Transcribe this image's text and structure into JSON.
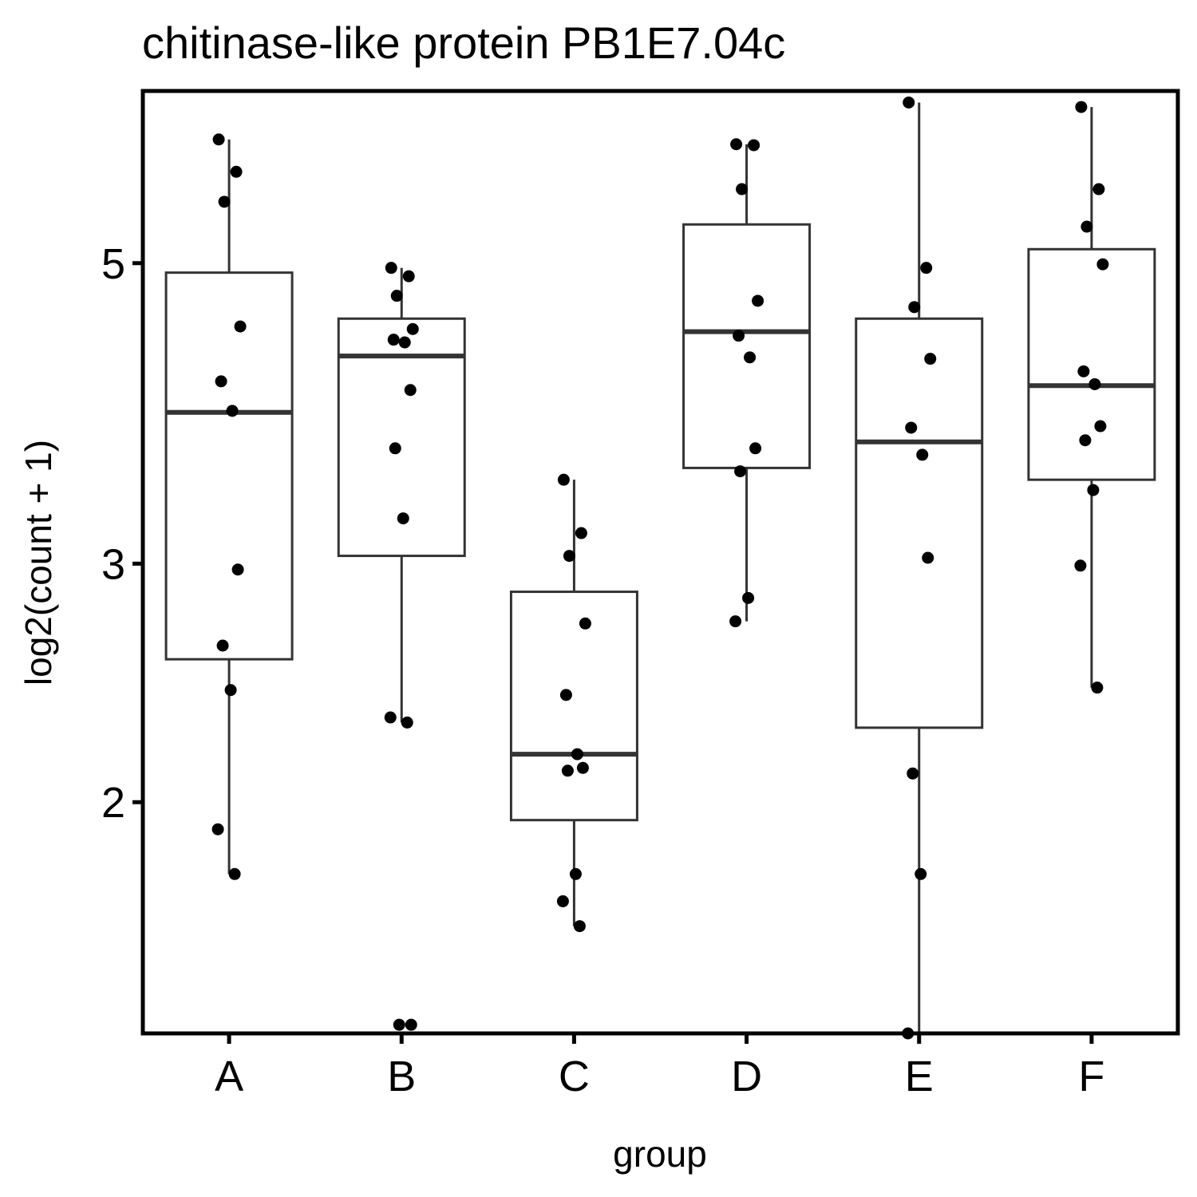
{
  "chart_data": {
    "type": "box",
    "title": "chitinase-like protein PB1E7.04c",
    "xlabel": "group",
    "ylabel": "log2(count + 1)",
    "y_scale": "log2",
    "ylim": [
      1.35,
      6.7
    ],
    "yticks": [
      2,
      3,
      5
    ],
    "ytick_labels": [
      "2",
      "3",
      "5"
    ],
    "grid": false,
    "legend": "none",
    "categories": [
      "A",
      "B",
      "C",
      "D",
      "E",
      "F"
    ],
    "boxes": [
      {
        "group": "A",
        "whisker_low": 1.77,
        "q1": 2.55,
        "median": 3.88,
        "q3": 4.92,
        "whisker_high": 6.17
      },
      {
        "group": "B",
        "whisker_low": 2.29,
        "q1": 3.04,
        "median": 4.27,
        "q3": 4.55,
        "whisker_high": 4.96
      },
      {
        "group": "C",
        "whisker_low": 1.62,
        "q1": 1.94,
        "median": 2.17,
        "q3": 2.86,
        "whisker_high": 3.46
      },
      {
        "group": "D",
        "whisker_low": 2.72,
        "q1": 3.53,
        "median": 4.45,
        "q3": 5.34,
        "whisker_high": 6.12
      },
      {
        "group": "E",
        "whisker_low": 1.35,
        "q1": 2.27,
        "median": 3.69,
        "q3": 4.55,
        "whisker_high": 6.57
      },
      {
        "group": "F",
        "whisker_low": 2.43,
        "q1": 3.46,
        "median": 4.06,
        "q3": 5.12,
        "whisker_high": 6.52
      }
    ],
    "points": [
      {
        "group": "A",
        "values": [
          6.17,
          5.84,
          5.55,
          4.49,
          4.09,
          3.89,
          2.97,
          2.61,
          2.42,
          1.91,
          1.77
        ]
      },
      {
        "group": "B",
        "values": [
          4.96,
          4.89,
          4.73,
          4.47,
          4.39,
          4.37,
          4.03,
          3.65,
          3.24,
          2.31,
          2.29,
          1.37,
          1.37
        ]
      },
      {
        "group": "C",
        "values": [
          3.46,
          3.16,
          3.04,
          2.71,
          2.4,
          2.17,
          2.12,
          2.11,
          1.77,
          1.69,
          1.62
        ]
      },
      {
        "group": "D",
        "values": [
          6.12,
          6.11,
          5.67,
          4.69,
          4.42,
          4.26,
          3.65,
          3.51,
          2.83,
          2.72
        ]
      },
      {
        "group": "E",
        "values": [
          6.57,
          4.96,
          4.64,
          4.25,
          3.78,
          3.61,
          3.03,
          2.1,
          1.77,
          1.35
        ]
      },
      {
        "group": "F",
        "values": [
          6.52,
          5.67,
          5.32,
          4.99,
          4.16,
          4.07,
          3.79,
          3.7,
          3.4,
          2.99,
          2.43
        ]
      }
    ]
  }
}
